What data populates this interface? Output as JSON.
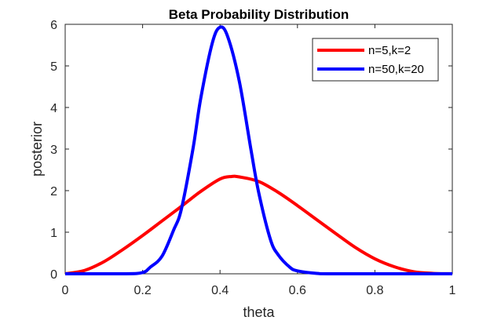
{
  "chart_data": {
    "type": "line",
    "title": "Beta Probability Distribution",
    "xlabel": "theta",
    "ylabel": "posterior",
    "xlim": [
      0,
      1
    ],
    "ylim": [
      0,
      6
    ],
    "xticks": [
      "0",
      "0.2",
      "0.4",
      "0.6",
      "0.8",
      "1"
    ],
    "yticks": [
      "0",
      "1",
      "2",
      "3",
      "4",
      "5",
      "6"
    ],
    "grid": false,
    "legend_position": "top-right",
    "series": [
      {
        "name": "n=5,k=2",
        "color": "#ff0000",
        "x": [
          0,
          0.05,
          0.1,
          0.15,
          0.2,
          0.25,
          0.3,
          0.35,
          0.4,
          0.43,
          0.45,
          0.5,
          0.55,
          0.6,
          0.65,
          0.7,
          0.75,
          0.8,
          0.85,
          0.9,
          0.95,
          1
        ],
        "y": [
          0,
          0.08,
          0.29,
          0.59,
          0.92,
          1.27,
          1.62,
          1.98,
          2.28,
          2.34,
          2.33,
          2.22,
          1.96,
          1.64,
          1.3,
          0.96,
          0.63,
          0.36,
          0.17,
          0.05,
          0.01,
          0
        ]
      },
      {
        "name": "n=50,k=20",
        "color": "#0000ff",
        "x": [
          0,
          0.15,
          0.2,
          0.22,
          0.25,
          0.28,
          0.3,
          0.33,
          0.35,
          0.38,
          0.4,
          0.42,
          0.45,
          0.48,
          0.5,
          0.53,
          0.55,
          0.58,
          0.6,
          0.65,
          0.7,
          1
        ],
        "y": [
          0,
          0,
          0.03,
          0.16,
          0.42,
          1.05,
          1.55,
          3.0,
          4.21,
          5.55,
          5.93,
          5.7,
          4.62,
          2.98,
          1.95,
          0.83,
          0.46,
          0.16,
          0.07,
          0.01,
          0,
          0
        ]
      }
    ]
  }
}
